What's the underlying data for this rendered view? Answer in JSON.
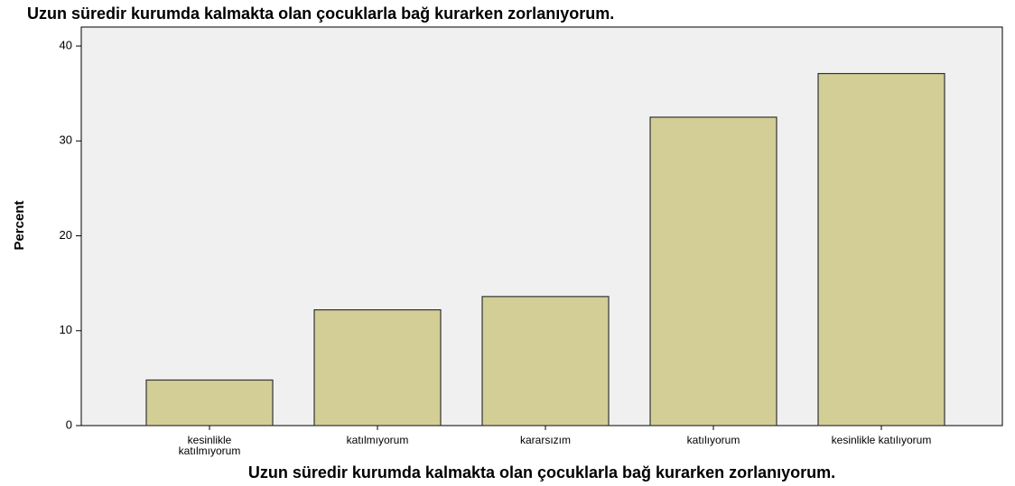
{
  "chart_data": {
    "type": "bar",
    "title": "Uzun süredir kurumda kalmakta olan çocuklarla bağ kurarken zorlanıyorum.",
    "x_label": "Uzun süredir kurumda kalmakta olan çocuklarla bağ kurarken zorlanıyorum.",
    "y_label": "Percent",
    "categories": [
      "kesinlikle katılmıyorum",
      "katılmıyorum",
      "kararsızım",
      "katılıyorum",
      "kesinlikle katılıyorum"
    ],
    "values": [
      4.8,
      12.2,
      13.6,
      32.5,
      37.1
    ],
    "color": "#d3ce96",
    "ylim": [
      0,
      42
    ],
    "yticks": [
      0,
      10,
      20,
      30,
      40
    ],
    "grid": false
  }
}
